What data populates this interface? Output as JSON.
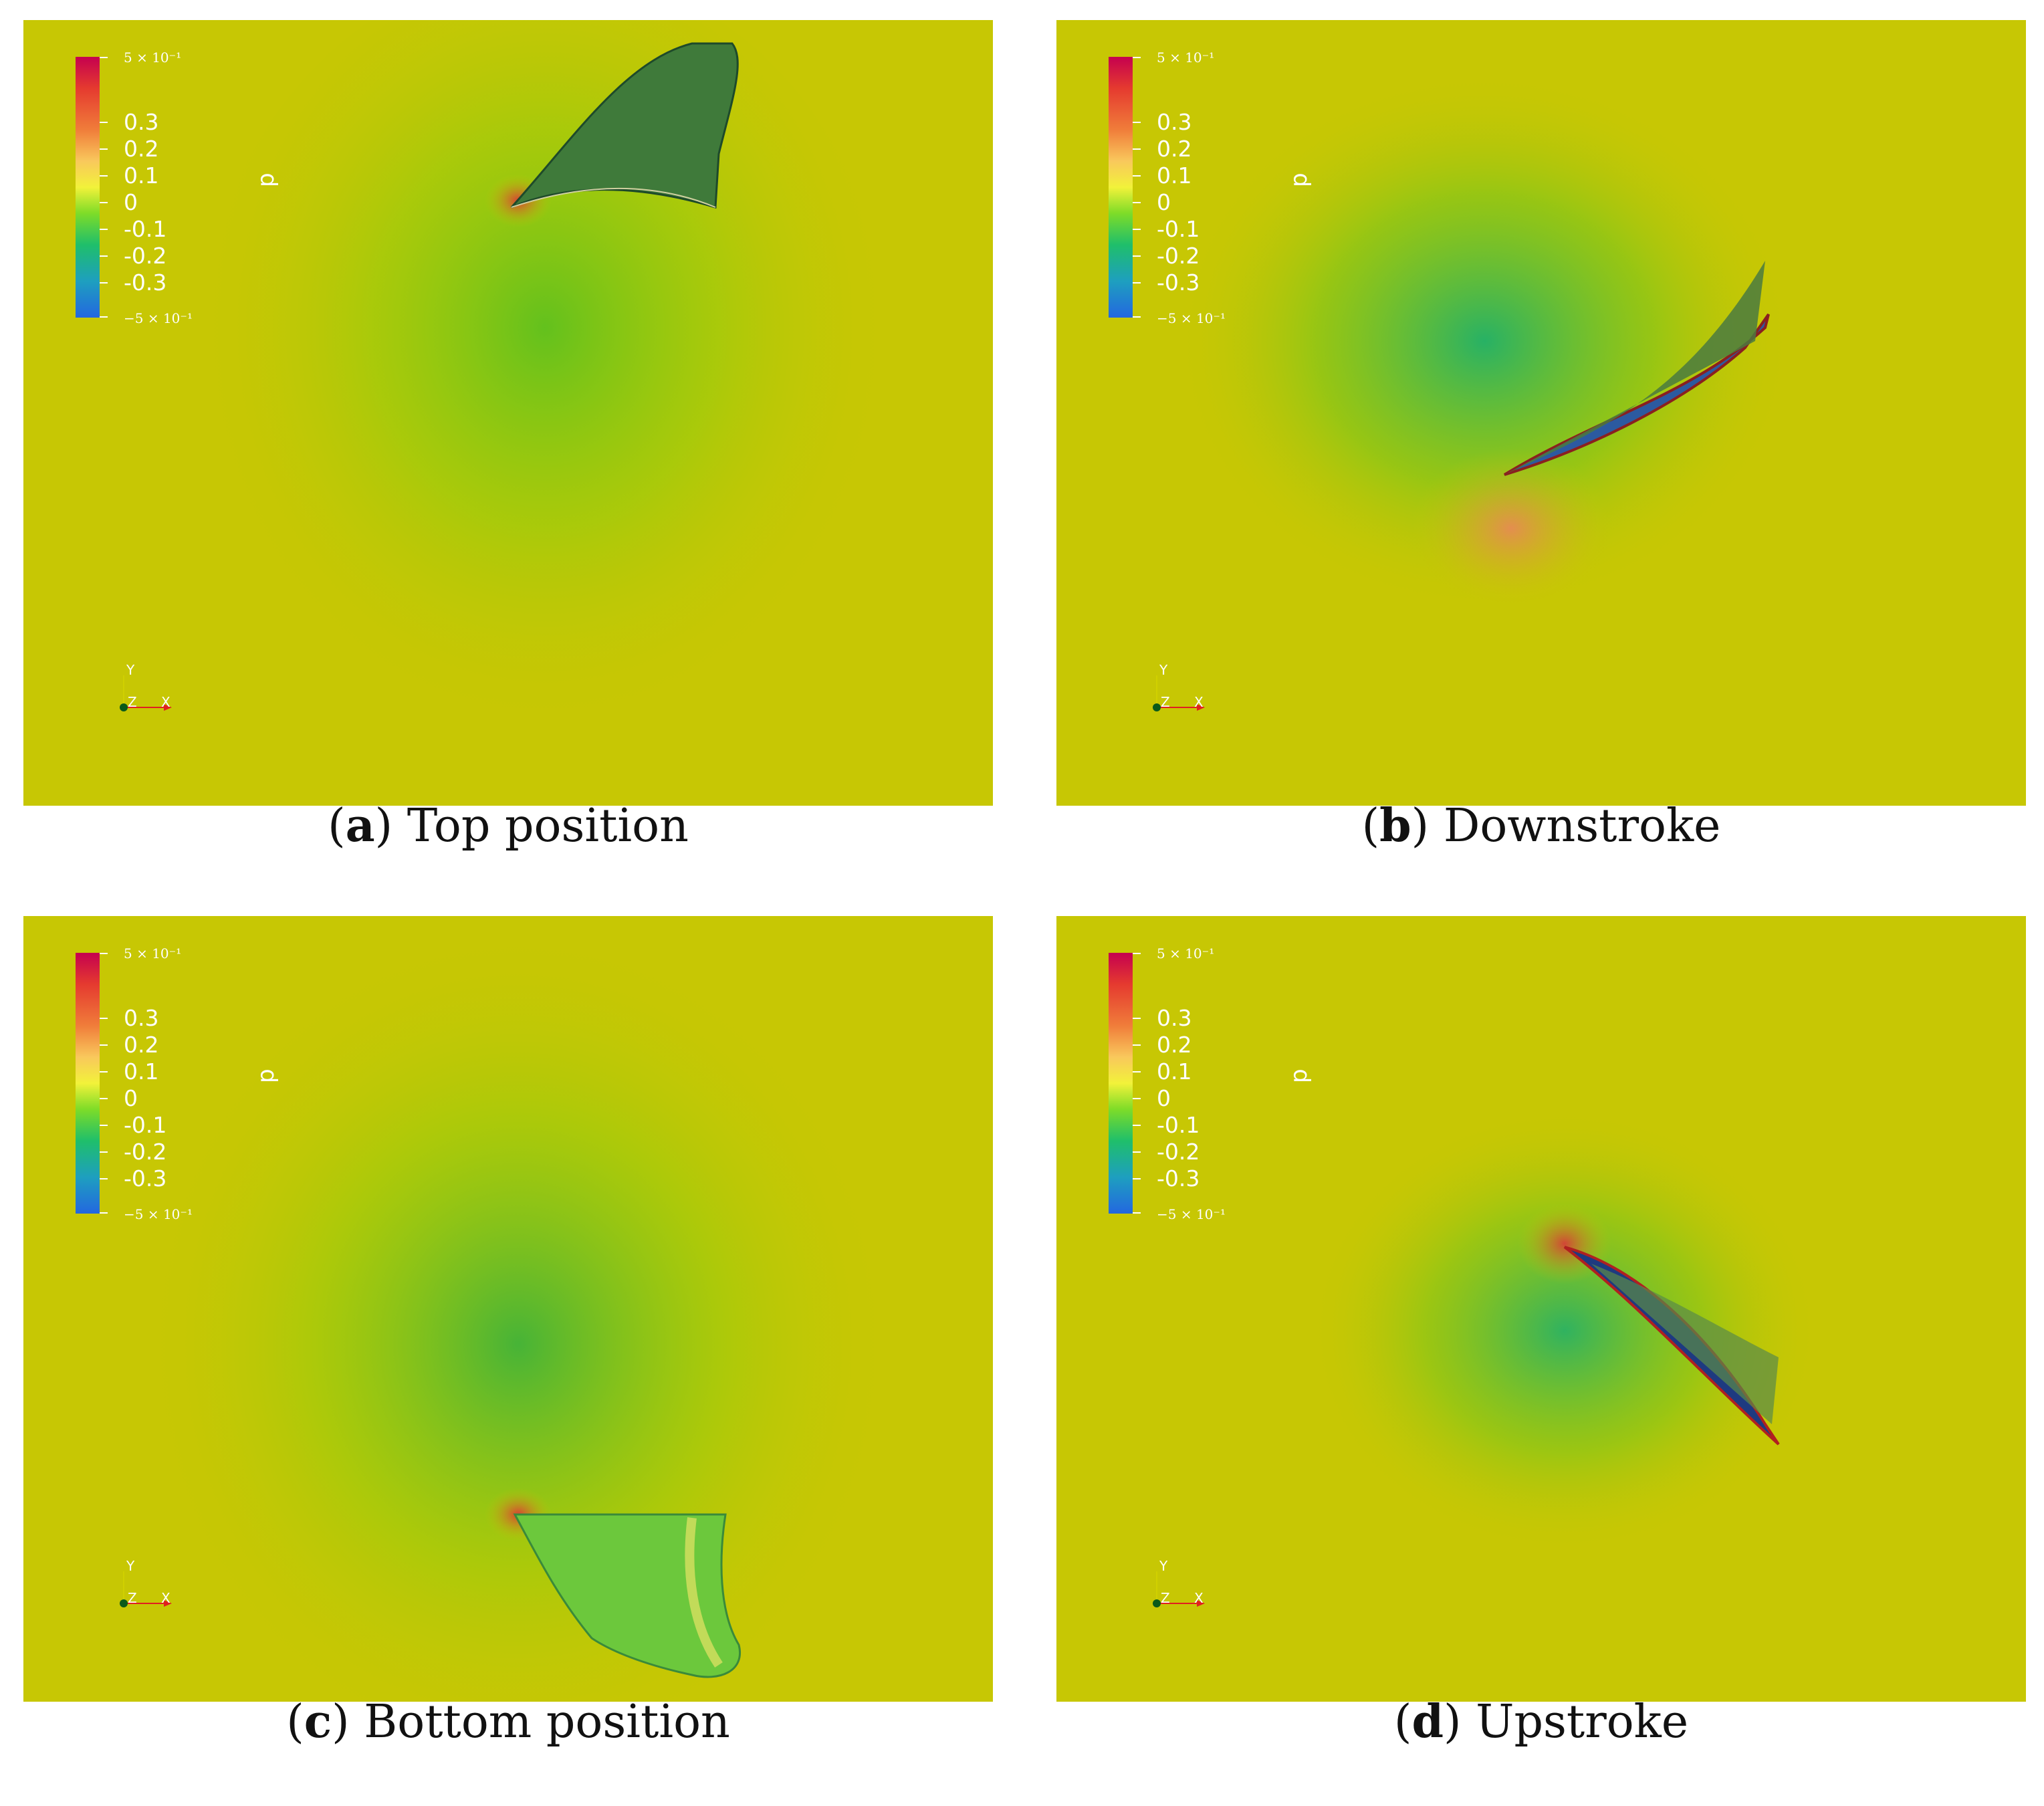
{
  "colorbar": {
    "variable": "p",
    "max_label": "5 × 10⁻¹",
    "min_label": "−5 × 10⁻¹",
    "ticks": [
      "0.3",
      "0.2",
      "0.1",
      "0",
      "-0.1",
      "-0.2",
      "-0.3"
    ]
  },
  "axes": {
    "y": "Y",
    "x": "X",
    "z": "Z"
  },
  "panels": [
    {
      "letter": "a",
      "caption": "Top position"
    },
    {
      "letter": "b",
      "caption": "Downstroke"
    },
    {
      "letter": "c",
      "caption": "Bottom position"
    },
    {
      "letter": "d",
      "caption": "Upstroke"
    }
  ],
  "colors": {
    "background_field": "#c7c704",
    "low_pressure": "#2367e0",
    "high_pressure": "#c5004f"
  }
}
